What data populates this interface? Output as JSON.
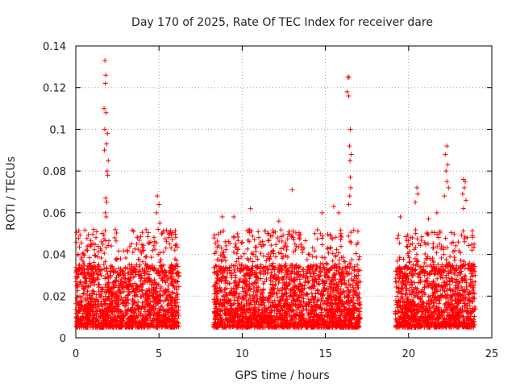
{
  "chart_data": {
    "type": "scatter",
    "title": "Day 170 of 2025, Rate Of TEC Index for receiver dare",
    "xlabel": "GPS time / hours",
    "ylabel": "ROTI / TECUs",
    "xlim": [
      0,
      25
    ],
    "ylim": [
      0,
      0.14
    ],
    "xticks": [
      "0",
      "5",
      "10",
      "15",
      "20",
      "25"
    ],
    "xtick_values": [
      0,
      5,
      10,
      15,
      20,
      25
    ],
    "yticks": [
      "0",
      "0.02",
      "0.04",
      "0.06",
      "0.08",
      "0.1",
      "0.12",
      "0.14"
    ],
    "ytick_values": [
      0,
      0.02,
      0.04,
      0.06,
      0.08,
      0.1,
      0.12,
      0.14
    ],
    "grid": true,
    "marker": "+",
    "color": "#ff0000",
    "data_segments": [
      {
        "start": 0.0,
        "end": 6.2
      },
      {
        "start": 8.3,
        "end": 17.1
      },
      {
        "start": 19.2,
        "end": 24.0
      }
    ],
    "base_range": [
      0.005,
      0.035
    ],
    "spikes": [
      {
        "x": 1.75,
        "y": 0.133
      },
      {
        "x": 1.8,
        "y": 0.126
      },
      {
        "x": 1.78,
        "y": 0.122
      },
      {
        "x": 1.7,
        "y": 0.11
      },
      {
        "x": 1.82,
        "y": 0.108
      },
      {
        "x": 1.74,
        "y": 0.1
      },
      {
        "x": 1.9,
        "y": 0.098
      },
      {
        "x": 1.85,
        "y": 0.093
      },
      {
        "x": 1.72,
        "y": 0.09
      },
      {
        "x": 1.95,
        "y": 0.085
      },
      {
        "x": 1.88,
        "y": 0.08
      },
      {
        "x": 1.92,
        "y": 0.078
      },
      {
        "x": 1.8,
        "y": 0.067
      },
      {
        "x": 1.86,
        "y": 0.065
      },
      {
        "x": 1.78,
        "y": 0.06
      },
      {
        "x": 1.83,
        "y": 0.058
      },
      {
        "x": 4.9,
        "y": 0.068
      },
      {
        "x": 5.0,
        "y": 0.064
      },
      {
        "x": 4.85,
        "y": 0.06
      },
      {
        "x": 5.05,
        "y": 0.055
      },
      {
        "x": 4.95,
        "y": 0.052
      },
      {
        "x": 16.35,
        "y": 0.125
      },
      {
        "x": 16.42,
        "y": 0.125
      },
      {
        "x": 16.3,
        "y": 0.118
      },
      {
        "x": 16.4,
        "y": 0.116
      },
      {
        "x": 16.5,
        "y": 0.1
      },
      {
        "x": 16.45,
        "y": 0.092
      },
      {
        "x": 16.55,
        "y": 0.088
      },
      {
        "x": 16.48,
        "y": 0.085
      },
      {
        "x": 16.5,
        "y": 0.077
      },
      {
        "x": 16.52,
        "y": 0.072
      },
      {
        "x": 16.46,
        "y": 0.068
      },
      {
        "x": 16.4,
        "y": 0.064
      },
      {
        "x": 13.0,
        "y": 0.071
      },
      {
        "x": 10.5,
        "y": 0.062
      },
      {
        "x": 20.5,
        "y": 0.072
      },
      {
        "x": 20.55,
        "y": 0.069
      },
      {
        "x": 20.4,
        "y": 0.065
      },
      {
        "x": 22.3,
        "y": 0.092
      },
      {
        "x": 22.2,
        "y": 0.088
      },
      {
        "x": 22.35,
        "y": 0.083
      },
      {
        "x": 22.25,
        "y": 0.08
      },
      {
        "x": 22.3,
        "y": 0.075
      },
      {
        "x": 22.4,
        "y": 0.072
      },
      {
        "x": 22.15,
        "y": 0.068
      },
      {
        "x": 23.3,
        "y": 0.076
      },
      {
        "x": 23.4,
        "y": 0.075
      },
      {
        "x": 23.35,
        "y": 0.072
      },
      {
        "x": 23.25,
        "y": 0.069
      },
      {
        "x": 23.45,
        "y": 0.066
      },
      {
        "x": 23.3,
        "y": 0.062
      },
      {
        "x": 15.5,
        "y": 0.063
      },
      {
        "x": 15.8,
        "y": 0.06
      },
      {
        "x": 14.8,
        "y": 0.06
      },
      {
        "x": 8.8,
        "y": 0.058
      },
      {
        "x": 9.5,
        "y": 0.058
      },
      {
        "x": 12.2,
        "y": 0.056
      },
      {
        "x": 19.5,
        "y": 0.058
      },
      {
        "x": 21.2,
        "y": 0.057
      },
      {
        "x": 21.7,
        "y": 0.06
      }
    ]
  }
}
